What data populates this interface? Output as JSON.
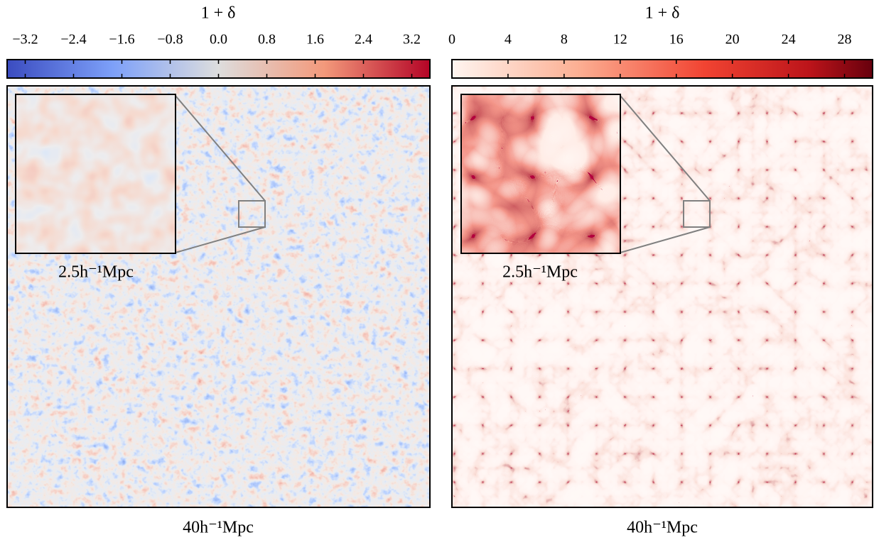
{
  "chart_data": [
    {
      "type": "heatmap",
      "title": "1 + δ",
      "clim": [
        -3.5,
        3.5
      ],
      "cticks": [
        {
          "value": -3.2,
          "label": "−3.2"
        },
        {
          "value": -2.4,
          "label": "−2.4"
        },
        {
          "value": -1.6,
          "label": "−1.6"
        },
        {
          "value": -0.8,
          "label": "−0.8"
        },
        {
          "value": 0,
          "label": "0.0"
        },
        0.8,
        1.6,
        2.4,
        3.2
      ],
      "inset_label": "2.5h⁻¹Mpc",
      "xlabel": "40h⁻¹Mpc"
    },
    {
      "type": "heatmap",
      "title": "1 + δ",
      "clim": [
        0,
        30
      ],
      "cticks": [
        0,
        4,
        8,
        12,
        16,
        20,
        24,
        28
      ],
      "inset_label": "2.5h⁻¹Mpc",
      "xlabel": "40h⁻¹Mpc"
    }
  ]
}
